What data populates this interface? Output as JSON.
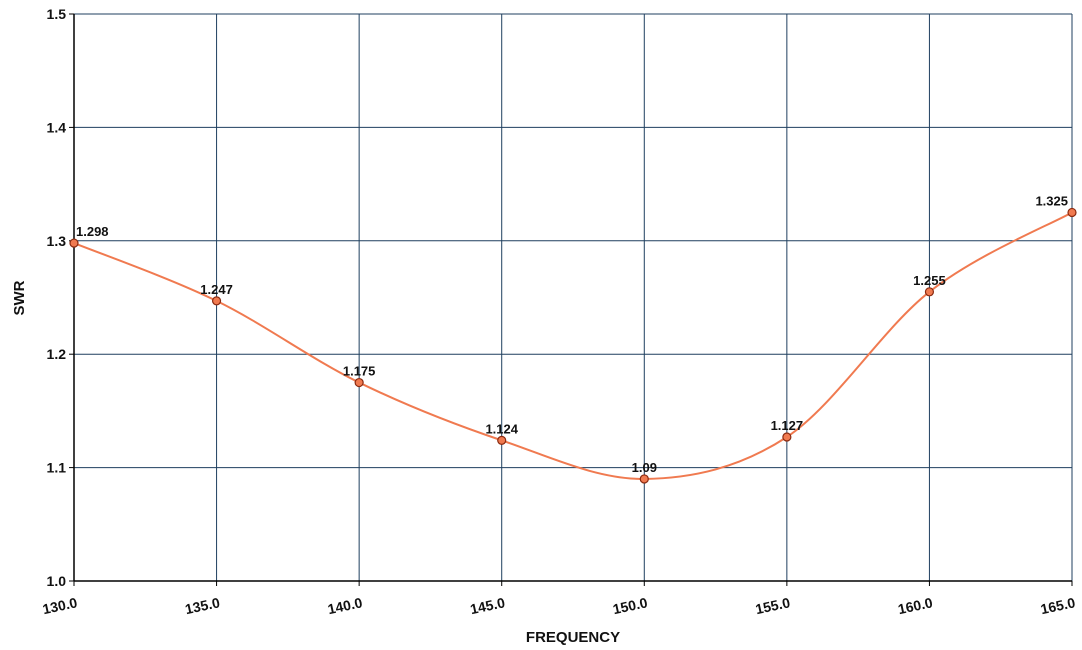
{
  "chart_data": {
    "type": "line",
    "title": "",
    "xlabel": "FREQUENCY",
    "ylabel": "SWR",
    "x": [
      130.0,
      135.0,
      140.0,
      145.0,
      150.0,
      155.0,
      160.0,
      165.0
    ],
    "x_tick_labels": [
      "130.0",
      "135.0",
      "140.0",
      "145.0",
      "150.0",
      "155.0",
      "160.0",
      "165.0"
    ],
    "y_tick_labels": [
      "1.0",
      "1.1",
      "1.2",
      "1.3",
      "1.4",
      "1.5"
    ],
    "y_ticks": [
      1.0,
      1.1,
      1.2,
      1.3,
      1.4,
      1.5
    ],
    "series": [
      {
        "values": [
          1.298,
          1.247,
          1.175,
          1.124,
          1.09,
          1.127,
          1.255,
          1.325
        ],
        "labels": [
          "1.298",
          "1.247",
          "1.175",
          "1.124",
          "1.09",
          "1.127",
          "1.255",
          "1.325"
        ]
      }
    ],
    "xlim": [
      130.0,
      165.0
    ],
    "ylim": [
      1.0,
      1.5
    ],
    "grid": true,
    "colors": {
      "line": "#f07a50",
      "marker_fill": "#f07a50",
      "marker_stroke": "#8a2a10",
      "grid": "#1f3f5f",
      "axis": "#000000"
    }
  }
}
